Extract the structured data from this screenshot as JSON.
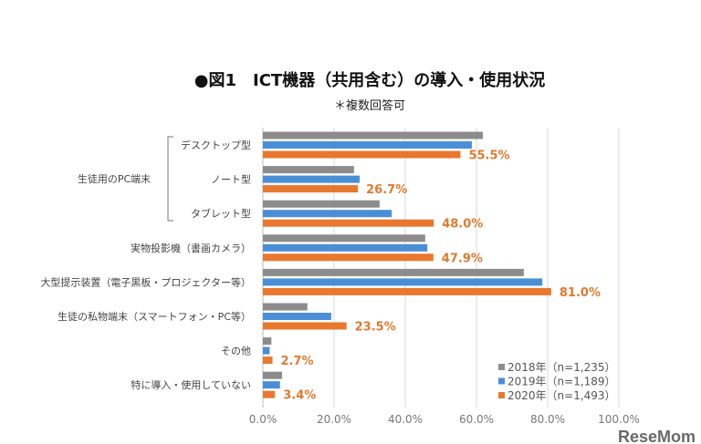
{
  "chart_data": {
    "type": "bar",
    "orientation": "horizontal",
    "title": "●図1　ICT機器（共用含む）の導入・使用状況",
    "subtitle": "＊複数回答可",
    "group_label": "生徒用のPC端末",
    "categories": [
      "デスクトップ型",
      "ノート型",
      "タブレット型",
      "実物投影機（書画カメラ）",
      "大型提示装置（電子黒板・プロジェクター等）",
      "生徒の私物端末（スマートフォン・PC等）",
      "その他",
      "特に導入・使用していない"
    ],
    "series": [
      {
        "name": "2018年（n=1,235）",
        "color": "#8C8C8C",
        "values": [
          61.8,
          25.6,
          32.8,
          45.6,
          73.3,
          12.5,
          2.4,
          5.4
        ]
      },
      {
        "name": "2019年（n=1,189）",
        "color": "#4A8FD6",
        "values": [
          58.7,
          27.2,
          36.2,
          46.2,
          78.5,
          19.2,
          1.9,
          4.8
        ]
      },
      {
        "name": "2020年（n=1,493）",
        "color": "#E9782F",
        "values": [
          55.5,
          26.7,
          48.0,
          47.9,
          81.0,
          23.5,
          2.7,
          3.4
        ]
      }
    ],
    "data_labels": [
      "55.5%",
      "26.7%",
      "48.0%",
      "47.9%",
      "81.0%",
      "23.5%",
      "2.7%",
      "3.4%"
    ],
    "xlim": [
      0,
      100
    ],
    "xticks": [
      "0.0%",
      "20.0%",
      "40.0%",
      "60.0%",
      "80.0%",
      "100.0%"
    ],
    "grid": true,
    "legend_position": "bottom-right"
  },
  "watermark": "ReseMom"
}
